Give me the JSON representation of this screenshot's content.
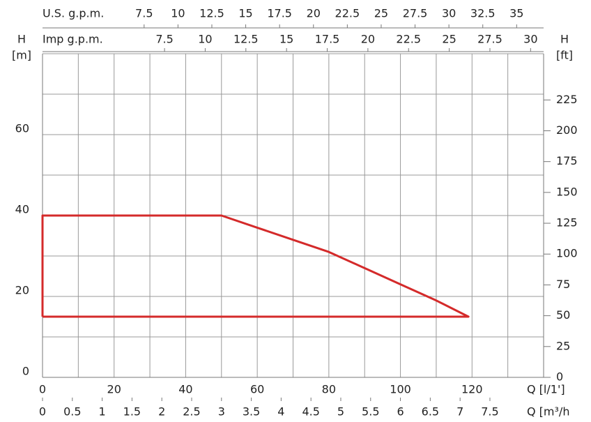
{
  "chart_data": {
    "type": "line",
    "xlim": [
      0,
      140
    ],
    "xticks": [
      0,
      20,
      40,
      60,
      80,
      100,
      120
    ],
    "xlabel": "Q [l/1']",
    "xgrid": [
      0,
      10,
      20,
      30,
      40,
      50,
      60,
      70,
      80,
      90,
      100,
      110,
      120,
      130,
      140
    ],
    "ylim": [
      0,
      80
    ],
    "yticks": [
      0,
      20,
      40,
      60
    ],
    "ygrid": [
      0,
      10,
      20,
      30,
      40,
      50,
      60,
      70,
      80
    ],
    "ylabel": "H",
    "ylabel_unit": "[m]",
    "y2lim": [
      0,
      262.5
    ],
    "y2ticks": [
      0,
      25,
      50,
      75,
      100,
      125,
      150,
      175,
      200,
      225
    ],
    "y2label": "H",
    "y2label_unit": "[ft]",
    "x_axes": [
      {
        "label": "U.S. g.p.m.",
        "position": "top",
        "lim": [
          0,
          36.99
        ],
        "ticks": [
          7.5,
          10,
          12.5,
          15,
          17.5,
          20,
          22.5,
          25,
          27.5,
          30,
          32.5,
          35
        ]
      },
      {
        "label": "Imp g.p.m.",
        "position": "top",
        "lim": [
          0,
          30.8
        ],
        "ticks": [
          7.5,
          10,
          12.5,
          15,
          17.5,
          20,
          22.5,
          25,
          27.5,
          30
        ]
      },
      {
        "label": "Q [m³/h",
        "position": "bottom",
        "lim": [
          0,
          8.4
        ],
        "ticks": [
          0,
          0.5,
          1,
          1.5,
          2,
          2.5,
          3,
          3.5,
          4,
          4.5,
          5,
          5.5,
          6,
          6.5,
          7,
          7.5
        ]
      }
    ],
    "series": [
      {
        "color": "#d42a2a",
        "x": [
          0,
          0,
          50,
          60,
          70,
          80,
          90,
          100,
          110,
          119,
          0
        ],
        "values": [
          15,
          40,
          40,
          37,
          34,
          31,
          27,
          23,
          19,
          15,
          15
        ]
      }
    ]
  }
}
